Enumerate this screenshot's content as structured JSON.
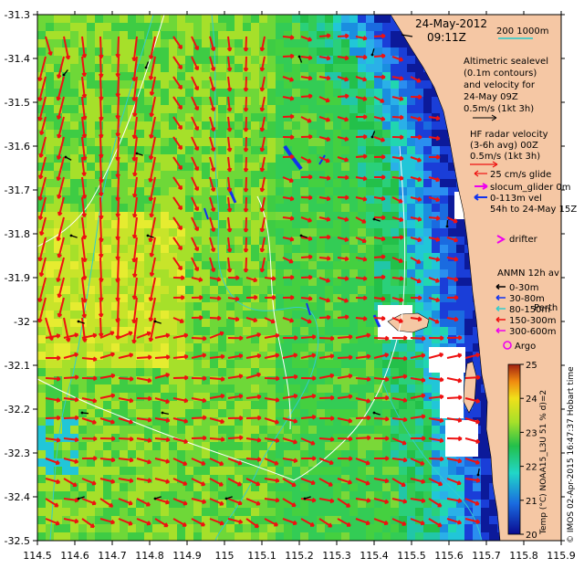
{
  "header": {
    "date": "24-May-2012",
    "time": "09:11Z"
  },
  "scale_bar": {
    "label": "200  1000m",
    "color": "#22cccc"
  },
  "altimetry_legend": {
    "lines": [
      "Altimetric sealevel",
      "(0.1m contours)",
      "and velocity for",
      "24-May 09Z"
    ],
    "reference": "0.5m/s (1kt 3h)"
  },
  "hf_radar_legend": {
    "lines": [
      "HF radar velocity",
      "(3-6h avg) 00Z"
    ],
    "reference": "0.5m/s (1kt 3h)"
  },
  "glider_legend": {
    "items": [
      "25 cm/s glide",
      "slocum_glider 0m",
      "0-113m vel",
      "54h to 24-May 15Z"
    ]
  },
  "drifter_legend": {
    "label": "drifter"
  },
  "anmn_legend": {
    "title": "ANMN 12h av",
    "items": [
      {
        "label": "0-30m",
        "color": "#000000"
      },
      {
        "label": "30-80m",
        "color": "#1133ee"
      },
      {
        "label": "80-150m",
        "color": "#33cccc"
      },
      {
        "label": "150-300m",
        "color": "#ee1111"
      },
      {
        "label": "300-600m",
        "color": "#ee00ee"
      }
    ]
  },
  "argo_legend": {
    "label": "Argo"
  },
  "place_labels": {
    "perth": "Perth"
  },
  "colorbar": {
    "label": "Temp (°C) NOAA15_L3U 51 %  d)=2",
    "ticks": [
      "25",
      "24",
      "23",
      "22",
      "21",
      "20"
    ],
    "range": [
      20,
      25
    ]
  },
  "credit": "© IMOS 02-Apr-2015 16:47:37 Hobart time",
  "axes": {
    "x_ticks": [
      "114.5",
      "114.6",
      "114.7",
      "114.8",
      "114.9",
      "115",
      "115.1",
      "115.2",
      "115.3",
      "115.4",
      "115.5",
      "115.6",
      "115.7",
      "115.8",
      "115.9"
    ],
    "y_ticks": [
      "-31.3",
      "-31.4",
      "-31.5",
      "-31.6",
      "-31.7",
      "-31.8",
      "-31.9",
      "-32",
      "-32.1",
      "-32.2",
      "-32.3",
      "-32.4",
      "-32.5"
    ],
    "lon_range": [
      114.5,
      115.9
    ],
    "lat_range": [
      -32.5,
      -31.3
    ]
  },
  "colors": {
    "land": "#f5c7a4",
    "velocity_arrow": "#ee1111",
    "contour": "#ffffff",
    "bathy": "#33cccc"
  }
}
